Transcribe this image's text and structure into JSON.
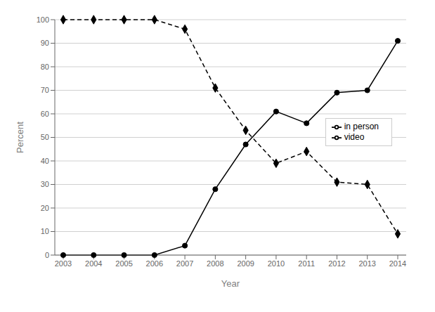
{
  "chart_data": {
    "type": "line",
    "x": [
      2003,
      2004,
      2005,
      2006,
      2007,
      2008,
      2009,
      2010,
      2011,
      2012,
      2013,
      2014
    ],
    "xlabel": "Year",
    "ylabel": "Percent",
    "xlim": [
      2003,
      2014
    ],
    "xticks": [
      2003,
      2004,
      2005,
      2006,
      2007,
      2008,
      2009,
      2010,
      2011,
      2012,
      2013,
      2014
    ],
    "ylim": [
      0,
      100
    ],
    "yticks": [
      0,
      10,
      20,
      30,
      40,
      50,
      60,
      70,
      80,
      90,
      100
    ],
    "grid": true,
    "legend": "right",
    "series": [
      {
        "name": "in person",
        "color": "black",
        "marker": "diamond",
        "line_style": "dashed",
        "values": [
          100,
          100,
          100,
          100,
          96,
          71,
          53,
          39,
          44,
          31,
          30,
          9
        ]
      },
      {
        "name": "video",
        "color": "black",
        "marker": "circle",
        "line_style": "solid",
        "values": [
          0,
          0,
          0,
          0,
          4,
          28,
          47,
          61,
          56,
          69,
          70,
          91
        ]
      }
    ]
  }
}
